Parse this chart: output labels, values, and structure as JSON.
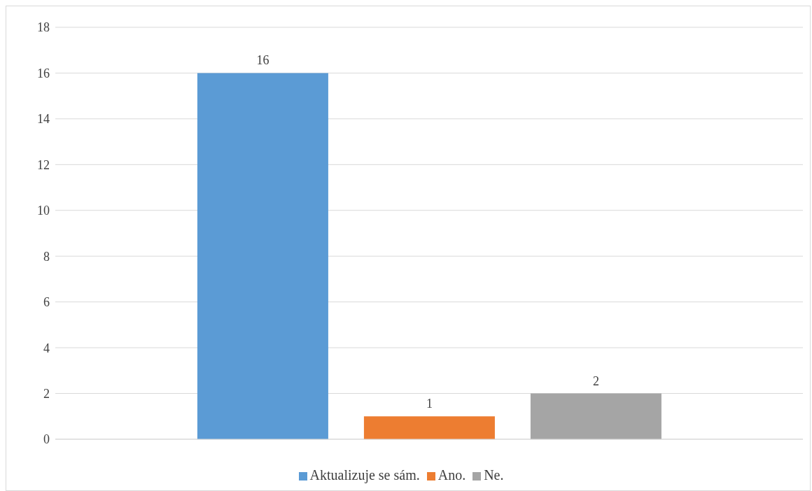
{
  "chart_data": {
    "type": "bar",
    "categories": [
      null
    ],
    "series": [
      {
        "name": "Aktualizuje se sám.",
        "color": "#5b9bd5",
        "values": [
          16
        ]
      },
      {
        "name": "Ano.",
        "color": "#ed7d31",
        "values": [
          1
        ]
      },
      {
        "name": "Ne.",
        "color": "#a5a5a5",
        "values": [
          2
        ]
      }
    ],
    "ylim": [
      0,
      18
    ],
    "yticks": [
      0,
      2,
      4,
      6,
      8,
      10,
      12,
      14,
      16,
      18
    ],
    "grid": "y",
    "legend": "bottom",
    "data_labels": true
  }
}
